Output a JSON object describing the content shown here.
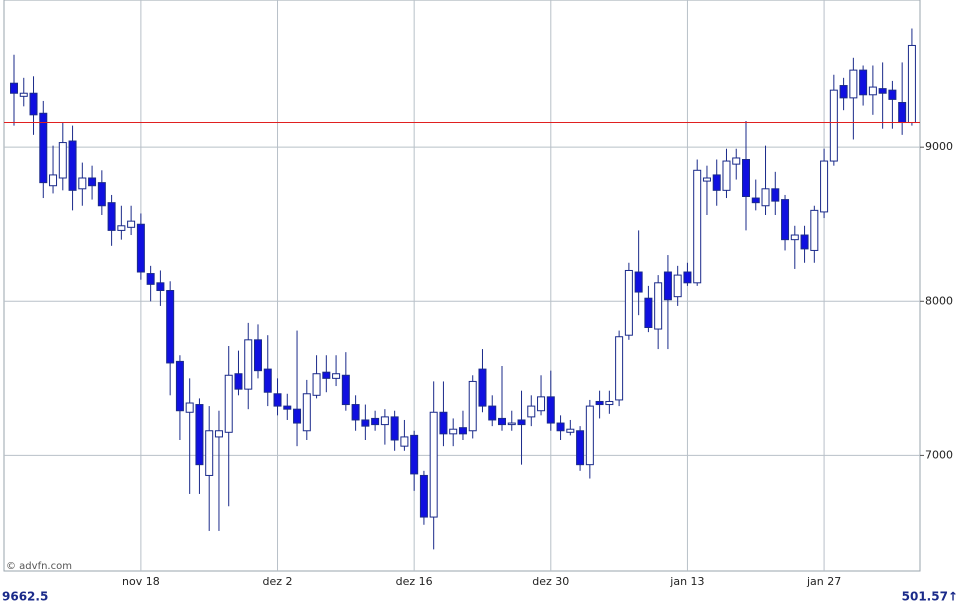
{
  "chart_data": {
    "type": "candlestick",
    "categories": [
      null,
      null,
      null,
      null,
      null,
      null,
      null,
      null,
      null,
      null,
      null,
      null,
      null,
      "nov 18",
      null,
      null,
      null,
      null,
      null,
      null,
      null,
      null,
      null,
      null,
      null,
      null,
      null,
      "dez 2",
      null,
      null,
      null,
      null,
      null,
      null,
      null,
      null,
      null,
      null,
      null,
      null,
      null,
      "dez 16",
      null,
      null,
      null,
      null,
      null,
      null,
      null,
      null,
      null,
      null,
      null,
      null,
      null,
      "dez 30",
      null,
      null,
      null,
      null,
      null,
      null,
      null,
      null,
      null,
      null,
      null,
      null,
      null,
      "jan 13",
      null,
      null,
      null,
      null,
      null,
      null,
      null,
      null,
      null,
      null,
      null,
      null,
      null,
      "jan 27",
      null,
      null,
      null,
      null,
      null,
      null,
      null,
      null,
      null
    ],
    "open": [
      9415,
      9330,
      9350,
      9220,
      8750,
      8800,
      9040,
      8730,
      8800,
      8770,
      8640,
      8460,
      8480,
      8500,
      8180,
      8120,
      8070,
      7610,
      7280,
      7330,
      6870,
      7120,
      7150,
      7530,
      7430,
      7750,
      7560,
      7400,
      7320,
      7300,
      7160,
      7390,
      7540,
      7500,
      7520,
      7330,
      7230,
      7240,
      7200,
      7250,
      7060,
      7130,
      6870,
      6600,
      7280,
      7140,
      7180,
      7160,
      7560,
      7320,
      7240,
      7200,
      7230,
      7250,
      7290,
      7380,
      7210,
      7150,
      7160,
      6940,
      7350,
      7330,
      7360,
      7780,
      8190,
      8020,
      7820,
      8190,
      8030,
      8190,
      8120,
      8780,
      8820,
      8720,
      8890,
      8920,
      8670,
      8620,
      8730,
      8660,
      8400,
      8430,
      8330,
      8580,
      8910,
      9400,
      9320,
      9500,
      9340,
      9380,
      9370,
      9290,
      9160
    ],
    "high": [
      9600,
      9450,
      9460,
      9300,
      9010,
      9160,
      9140,
      8900,
      8880,
      8850,
      8690,
      8620,
      8620,
      8570,
      8230,
      8200,
      8130,
      7650,
      7500,
      7370,
      7320,
      7290,
      7710,
      7680,
      7860,
      7850,
      7780,
      7500,
      7400,
      7810,
      7490,
      7650,
      7650,
      7650,
      7670,
      7390,
      7330,
      7290,
      7300,
      7290,
      7230,
      7160,
      6900,
      7480,
      7480,
      7240,
      7290,
      7520,
      7690,
      7390,
      7580,
      7290,
      7420,
      7390,
      7520,
      7550,
      7260,
      7230,
      7190,
      7360,
      7420,
      7420,
      7810,
      8250,
      8460,
      8100,
      8170,
      8300,
      8230,
      8250,
      8920,
      8880,
      8920,
      8990,
      8990,
      9170,
      8790,
      9010,
      8840,
      8690,
      8490,
      8490,
      8620,
      8990,
      9470,
      9450,
      9580,
      9530,
      9530,
      9550,
      9430,
      9550,
      9770
    ],
    "low": [
      9140,
      9265,
      9080,
      8670,
      8700,
      8720,
      8590,
      8620,
      8660,
      8560,
      8360,
      8400,
      8430,
      8140,
      8000,
      7970,
      7390,
      7100,
      6750,
      6750,
      6510,
      6510,
      6670,
      7390,
      7300,
      7500,
      7320,
      7260,
      7230,
      7060,
      7100,
      7370,
      7410,
      7450,
      7290,
      7160,
      7100,
      7160,
      7070,
      7030,
      7030,
      6770,
      6550,
      6390,
      7060,
      7060,
      7100,
      7110,
      7280,
      7190,
      7160,
      7160,
      6940,
      7190,
      7260,
      7160,
      7100,
      7130,
      6900,
      6850,
      7240,
      7270,
      7320,
      7750,
      7910,
      7800,
      7690,
      7690,
      7970,
      8100,
      8100,
      8560,
      8620,
      8670,
      8790,
      8460,
      8590,
      8560,
      8560,
      8330,
      8210,
      8250,
      8250,
      8540,
      8880,
      9240,
      9050,
      9270,
      9210,
      9120,
      9120,
      9080,
      9140
    ],
    "close": [
      9350,
      9350,
      9210,
      8770,
      8820,
      9030,
      8720,
      8800,
      8750,
      8620,
      8460,
      8490,
      8520,
      8190,
      8110,
      8070,
      7600,
      7290,
      7340,
      6940,
      7160,
      7160,
      7520,
      7430,
      7750,
      7550,
      7410,
      7320,
      7300,
      7210,
      7400,
      7530,
      7500,
      7530,
      7330,
      7230,
      7190,
      7200,
      7250,
      7100,
      7120,
      6880,
      6600,
      7280,
      7140,
      7170,
      7140,
      7480,
      7320,
      7230,
      7200,
      7210,
      7200,
      7320,
      7380,
      7210,
      7160,
      7170,
      6940,
      7320,
      7330,
      7350,
      7770,
      8200,
      8060,
      7830,
      8120,
      8010,
      8170,
      8120,
      8850,
      8800,
      8720,
      8910,
      8930,
      8680,
      8640,
      8730,
      8650,
      8400,
      8430,
      8340,
      8590,
      8910,
      9370,
      9320,
      9500,
      9340,
      9390,
      9350,
      9310,
      9160,
      9660
    ],
    "up_color": "#ffffff",
    "down_color": "#1010e0",
    "edge_color": "#1a2a8a",
    "reference_line": 9160,
    "reference_color": "#e02020",
    "ylim": [
      6250,
      9955
    ],
    "yticks": [
      7000,
      8000,
      9000
    ],
    "grid": true,
    "last_price": "9662.5",
    "volume_label": "501.57↑",
    "watermark": "© advfn.com"
  }
}
